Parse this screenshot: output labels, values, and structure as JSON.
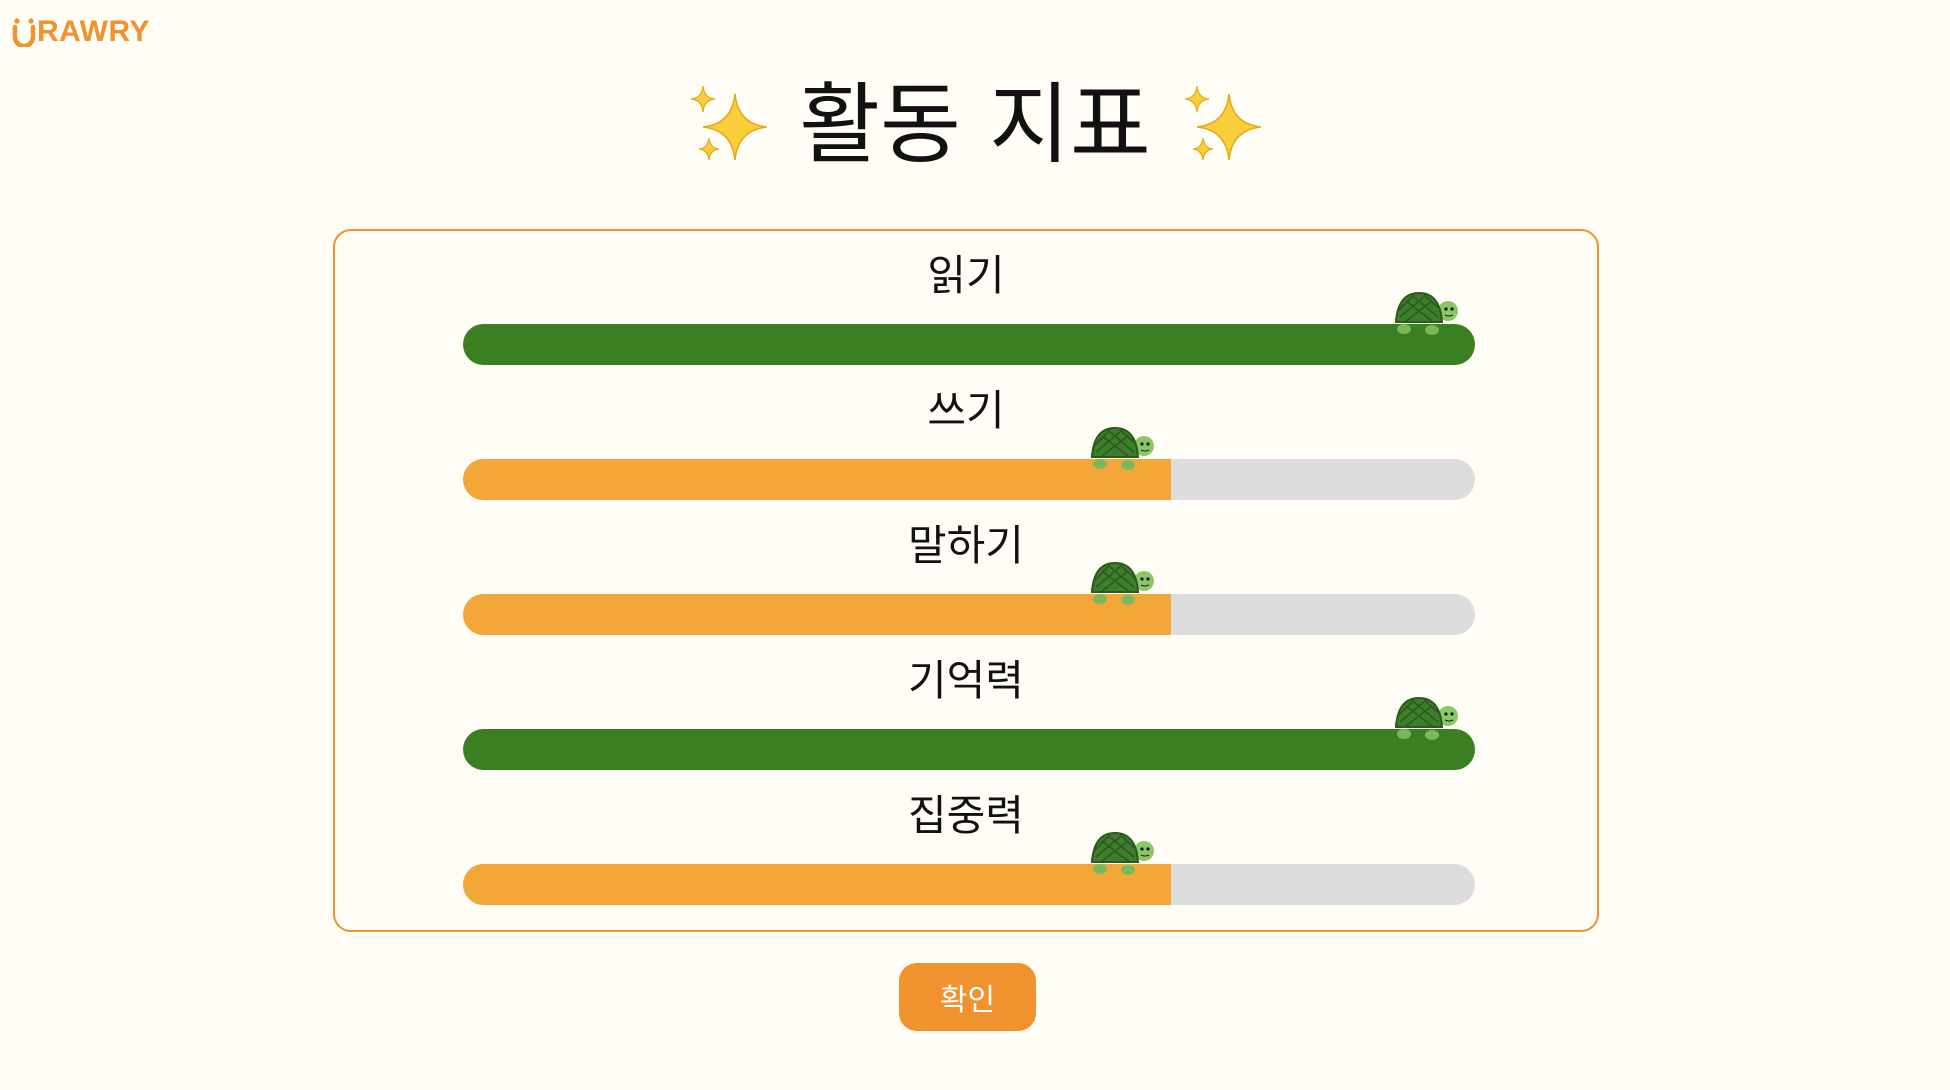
{
  "logo": {
    "text": "RAWRY",
    "icon": "smiley-u-icon"
  },
  "page": {
    "title": "활동 지표",
    "decoration_icon": "sparkles-icon"
  },
  "metrics": [
    {
      "label": "읽기",
      "progress": 1.0
    },
    {
      "label": "쓰기",
      "progress": 0.7
    },
    {
      "label": "말하기",
      "progress": 0.7
    },
    {
      "label": "기억력",
      "progress": 1.0
    },
    {
      "label": "집중력",
      "progress": 0.7
    }
  ],
  "progress_marker_icon": "turtle-icon",
  "confirm_button": {
    "label": "확인"
  },
  "colors": {
    "accent": "#f0922d",
    "progress_partial": "#f2a738",
    "progress_complete": "#3a7f22",
    "track": "#dddddd",
    "background": "#fffdf5"
  }
}
